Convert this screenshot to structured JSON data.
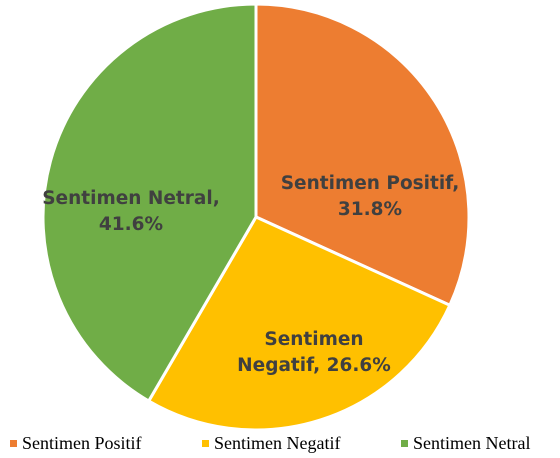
{
  "chart_data": {
    "type": "pie",
    "categories": [
      "Sentimen Positif",
      "Sentimen Negatif",
      "Sentimen Netral"
    ],
    "values": [
      31.8,
      26.6,
      41.6
    ],
    "value_unit": "%",
    "colors": [
      "#ED7D31",
      "#FFC000",
      "#70AD47"
    ],
    "slice_labels": [
      [
        "Sentimen Positif,",
        "31.8%"
      ],
      [
        "Sentimen",
        "Negatif, 26.6%"
      ],
      [
        "Sentimen Netral,",
        "41.6%"
      ]
    ],
    "legend": {
      "position": "bottom",
      "items": [
        "Sentimen Positif",
        "Sentimen Negatif",
        "Sentimen Netral"
      ]
    }
  }
}
